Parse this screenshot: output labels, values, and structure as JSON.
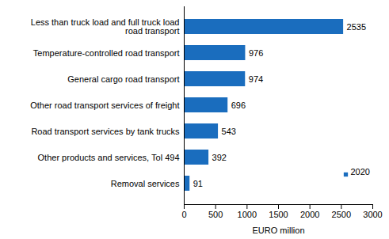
{
  "chart_data": {
    "type": "bar",
    "orientation": "horizontal",
    "categories": [
      "Less than truck load and full truck load road transport",
      "Temperature-controlled road transport",
      "General cargo road transport",
      "Other road transport services of freight",
      "Road transport services by tank trucks",
      "Other products and services, Tol 494",
      "Removal services"
    ],
    "series": [
      {
        "name": "2020",
        "color": "#1a6dbe",
        "values": [
          2535,
          976,
          974,
          696,
          543,
          392,
          91
        ]
      }
    ],
    "xlabel": "EURO million",
    "xlim": [
      0,
      3000
    ],
    "xticks": [
      0,
      500,
      1000,
      1500,
      2000,
      2500,
      3000
    ],
    "grid": false,
    "legend": "bottom-right",
    "data_labels": true
  }
}
